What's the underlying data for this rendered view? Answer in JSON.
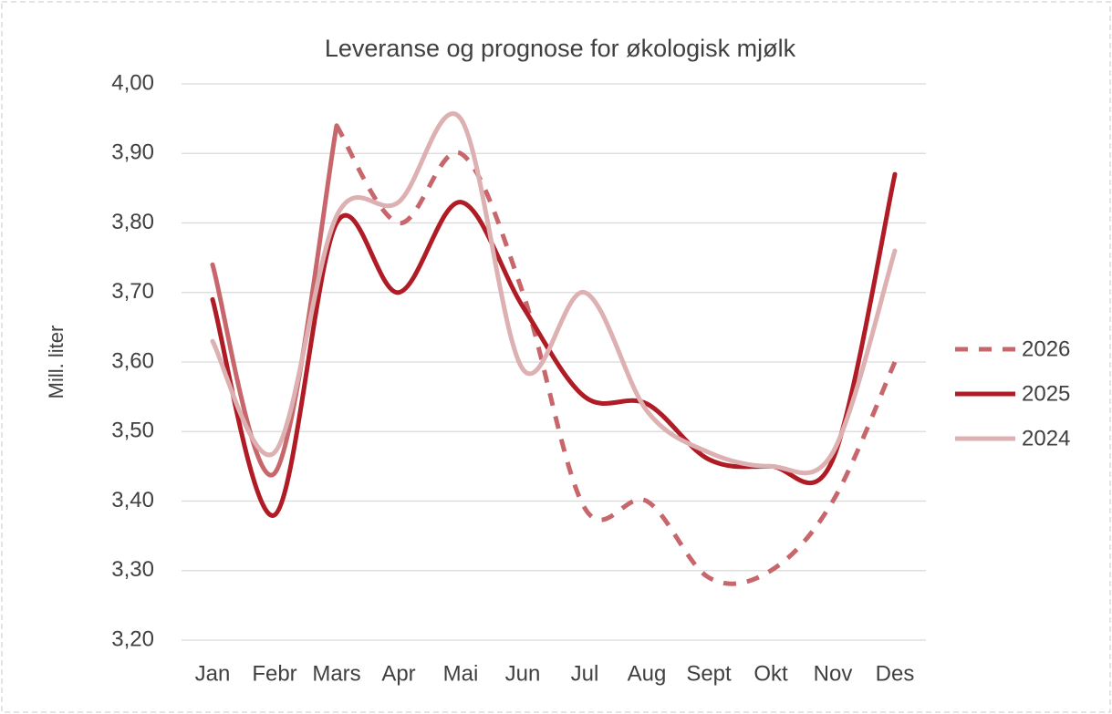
{
  "chart_data": {
    "type": "line",
    "title": "Leveranse og prognose for økologisk mjølk",
    "y_label": "Mill. liter",
    "categories": [
      "Jan",
      "Febr",
      "Mars",
      "Apr",
      "Mai",
      "Jun",
      "Jul",
      "Aug",
      "Sept",
      "Okt",
      "Nov",
      "Des"
    ],
    "series": [
      {
        "name": "2026",
        "color": "#c8676b",
        "dash_from": 2,
        "values": [
          3.74,
          3.44,
          3.94,
          3.8,
          3.9,
          3.7,
          3.39,
          3.4,
          3.29,
          3.3,
          3.4,
          3.6
        ]
      },
      {
        "name": "2025",
        "color": "#b01c26",
        "values": [
          3.69,
          3.38,
          3.8,
          3.7,
          3.83,
          3.68,
          3.55,
          3.54,
          3.46,
          3.45,
          3.46,
          3.87
        ]
      },
      {
        "name": "2024",
        "color": "#ddb0b2",
        "values": [
          3.63,
          3.47,
          3.81,
          3.83,
          3.95,
          3.59,
          3.7,
          3.53,
          3.47,
          3.45,
          3.47,
          3.76
        ]
      }
    ],
    "ylim": [
      3.2,
      4.0
    ],
    "yticks": [
      {
        "value": 3.2,
        "label": "3,20"
      },
      {
        "value": 3.3,
        "label": "3,30"
      },
      {
        "value": 3.4,
        "label": "3,40"
      },
      {
        "value": 3.5,
        "label": "3,50"
      },
      {
        "value": 3.6,
        "label": "3,60"
      },
      {
        "value": 3.7,
        "label": "3,70"
      },
      {
        "value": 3.8,
        "label": "3,80"
      },
      {
        "value": 3.9,
        "label": "3,90"
      },
      {
        "value": 4.0,
        "label": "4,00"
      }
    ],
    "grid": true,
    "legend": "right",
    "smooth": true
  }
}
